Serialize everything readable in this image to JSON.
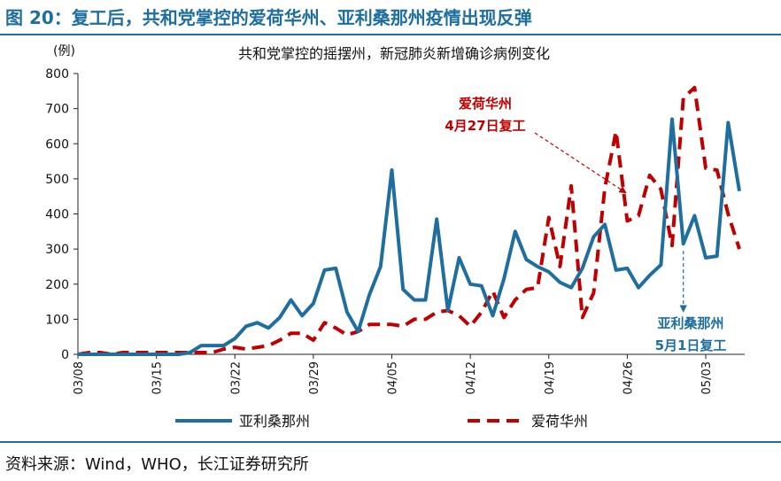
{
  "figure_title": "图 20：复工后，共和党掌控的爱荷华州、亚利桑那州疫情出现反弹",
  "source": "资料来源：Wind，WHO，长江证券研究所",
  "chart_data": {
    "type": "line",
    "title": "共和党掌控的摇摆州，新冠肺炎新增确诊病例变化",
    "ylabel": "(例)",
    "ylim": [
      0,
      800
    ],
    "yticks": [
      0,
      100,
      200,
      300,
      400,
      500,
      600,
      700,
      800
    ],
    "xticks": [
      "03/08",
      "03/15",
      "03/22",
      "03/29",
      "04/05",
      "04/12",
      "04/19",
      "04/26",
      "05/03"
    ],
    "legend_position": "bottom",
    "grid": false,
    "x": [
      "03/08",
      "03/09",
      "03/10",
      "03/11",
      "03/12",
      "03/13",
      "03/14",
      "03/15",
      "03/16",
      "03/17",
      "03/18",
      "03/19",
      "03/20",
      "03/21",
      "03/22",
      "03/23",
      "03/24",
      "03/25",
      "03/26",
      "03/27",
      "03/28",
      "03/29",
      "03/30",
      "03/31",
      "04/01",
      "04/02",
      "04/03",
      "04/04",
      "04/05",
      "04/06",
      "04/07",
      "04/08",
      "04/09",
      "04/10",
      "04/11",
      "04/12",
      "04/13",
      "04/14",
      "04/15",
      "04/16",
      "04/17",
      "04/18",
      "04/19",
      "04/20",
      "04/21",
      "04/22",
      "04/23",
      "04/24",
      "04/25",
      "04/26",
      "04/27",
      "04/28",
      "04/29",
      "04/30",
      "05/01",
      "05/02",
      "05/03",
      "05/04",
      "05/05",
      "05/06"
    ],
    "series": [
      {
        "name": "亚利桑那州",
        "color": "#1e6f9f",
        "style": "solid",
        "values": [
          0,
          0,
          0,
          0,
          0,
          0,
          0,
          0,
          0,
          0,
          5,
          25,
          25,
          25,
          45,
          80,
          90,
          75,
          105,
          155,
          110,
          145,
          240,
          245,
          120,
          65,
          170,
          250,
          525,
          185,
          155,
          155,
          385,
          125,
          275,
          200,
          195,
          110,
          215,
          350,
          270,
          250,
          235,
          205,
          190,
          245,
          335,
          370,
          240,
          245,
          190,
          225,
          255,
          670,
          315,
          395,
          275,
          280,
          660,
          465
        ]
      },
      {
        "name": "爱荷华州",
        "color": "#c00000",
        "style": "dashed",
        "values": [
          0,
          5,
          5,
          0,
          5,
          5,
          5,
          5,
          5,
          5,
          5,
          5,
          5,
          15,
          20,
          15,
          20,
          25,
          40,
          60,
          60,
          40,
          90,
          75,
          55,
          65,
          85,
          85,
          85,
          80,
          100,
          100,
          120,
          125,
          110,
          80,
          120,
          180,
          105,
          155,
          185,
          190,
          390,
          250,
          480,
          105,
          175,
          475,
          635,
          380,
          395,
          510,
          470,
          310,
          730,
          760,
          530,
          525,
          400,
          300
        ]
      }
    ],
    "annotations": [
      {
        "text": [
          "爱荷华州",
          "4月27日复工"
        ],
        "color": "#c00000",
        "target_x": "04/27",
        "target_y": 470
      },
      {
        "text": [
          "亚利桑那州",
          "5月1日复工"
        ],
        "color": "#1e6f9f",
        "target_x": "05/01",
        "target_y": 300
      }
    ]
  }
}
